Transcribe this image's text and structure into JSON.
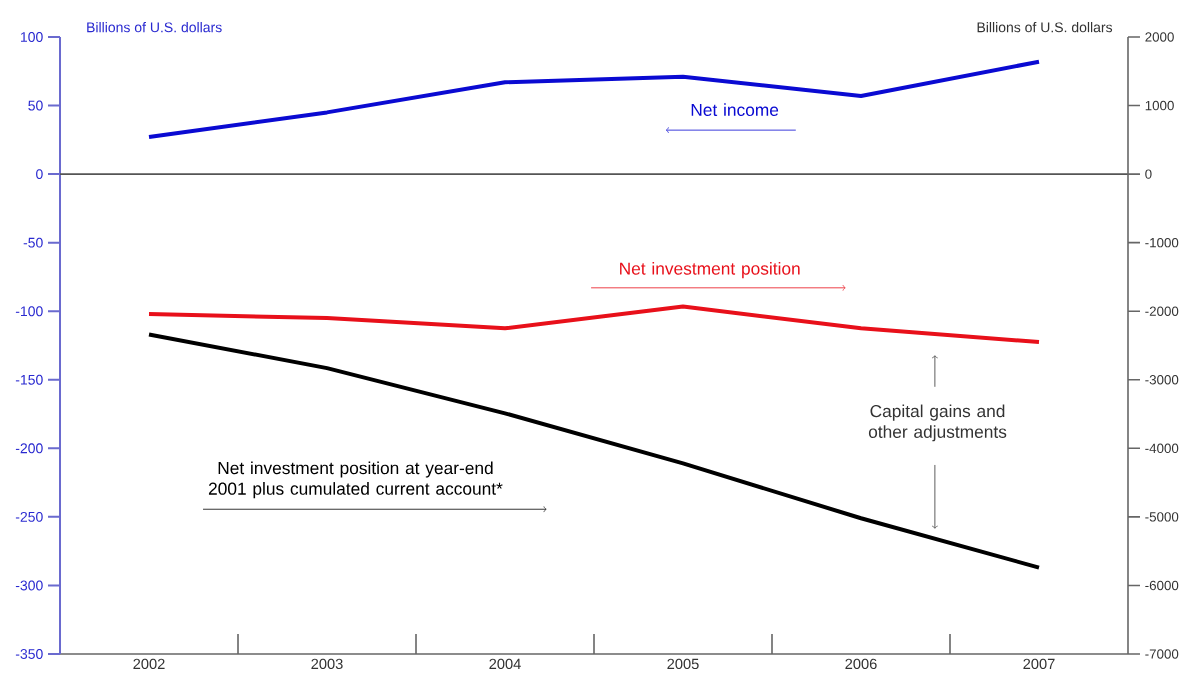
{
  "chart_data": {
    "type": "line",
    "ylabel": "Billions of U.S. dollars",
    "y2label": "Billions of U.S. dollars",
    "categories": [
      "2002",
      "2003",
      "2004",
      "2005",
      "2006",
      "2007"
    ],
    "ylim": [
      -350,
      100
    ],
    "yticks": [
      -350,
      -300,
      -250,
      -200,
      -150,
      -100,
      -50,
      0,
      50,
      100
    ],
    "y2lim": [
      -7000,
      2000
    ],
    "y2ticks": [
      -7000,
      -6000,
      -5000,
      -4000,
      -3000,
      -2000,
      -1000,
      0,
      1000,
      2000
    ],
    "series": [
      {
        "name": "Net income",
        "color": "#0a0ad2",
        "values": [
          27,
          45,
          67,
          71,
          57,
          82
        ]
      },
      {
        "name": "Net investment position",
        "color": "#e8101a",
        "axis": "y2",
        "values": [
          -2040,
          -2100,
          -2250,
          -1930,
          -2250,
          -2450
        ]
      },
      {
        "name": "Net investment position at year-end 2001 plus cumulated current account*",
        "color": "#000000",
        "axis": "y2",
        "values": [
          -2340,
          -2830,
          -3490,
          -4220,
          -5020,
          -5740
        ]
      }
    ],
    "ref_lines": [
      {
        "axis": "y",
        "value": 0,
        "color": "#555555"
      }
    ],
    "annotations": [
      "Capital gains and other adjustments"
    ],
    "legend": false,
    "grid": false
  }
}
